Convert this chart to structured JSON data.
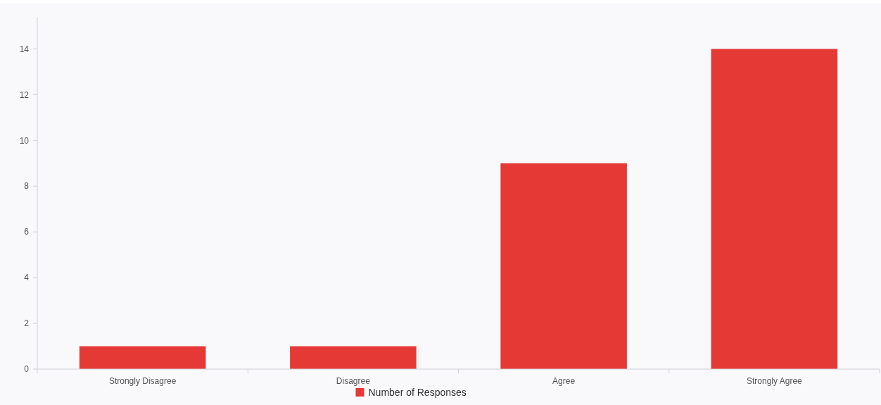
{
  "chart_data": {
    "type": "bar",
    "categories": [
      "Strongly Disagree",
      "Disagree",
      "Agree",
      "Strongly Agree"
    ],
    "series": [
      {
        "name": "Number of Responses",
        "color": "#e53935",
        "values": [
          1,
          1,
          9,
          14
        ]
      }
    ],
    "ylim": [
      0,
      15.4
    ],
    "yticks": [
      0,
      2,
      4,
      6,
      8,
      10,
      12,
      14
    ],
    "grid": false,
    "legend": "bottom"
  }
}
